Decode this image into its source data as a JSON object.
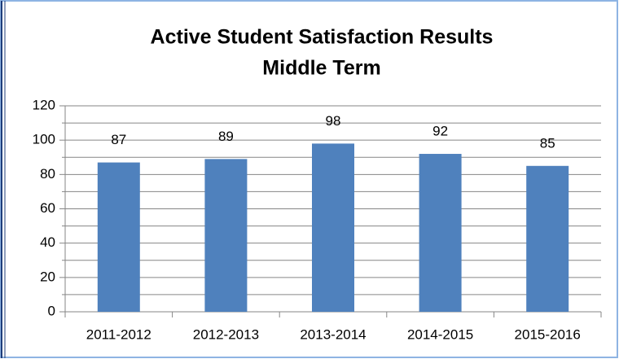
{
  "chart_data": {
    "type": "bar",
    "title": [
      "Active Student Satisfaction Results",
      "Middle Term"
    ],
    "categories": [
      "2011-2012",
      "2012-2013",
      "2013-2014",
      "2014-2015",
      "2015-2016"
    ],
    "values": [
      87,
      89,
      98,
      92,
      85
    ],
    "color": "#4f81bd",
    "ylim": [
      0,
      120
    ],
    "yticks": [
      0,
      20,
      40,
      60,
      80,
      100,
      120
    ],
    "yminor": [
      10,
      30,
      50,
      70,
      90,
      110
    ],
    "grid": true
  }
}
